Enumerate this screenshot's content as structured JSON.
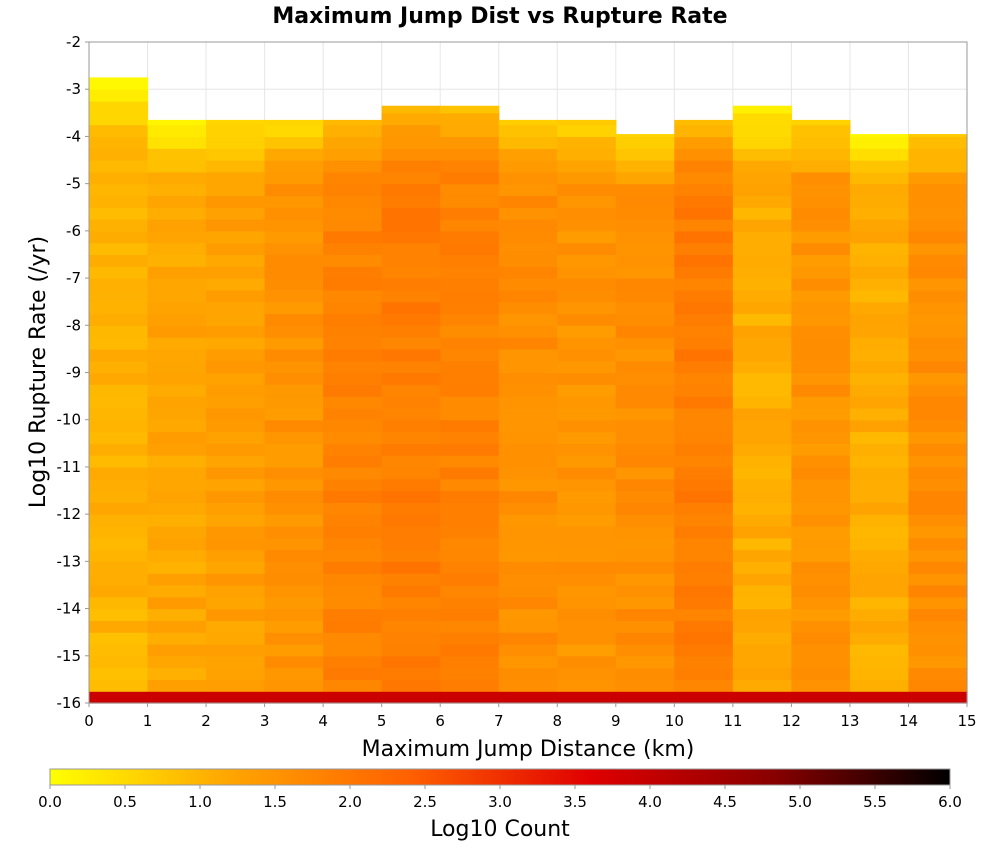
{
  "chart_data": {
    "type": "heatmap",
    "title": "Maximum Jump Dist vs Rupture Rate",
    "xlabel": "Maximum Jump Distance (km)",
    "ylabel": "Log10 Rupture Rate (/yr)",
    "xlim": [
      0,
      15
    ],
    "ylim": [
      -16,
      -2
    ],
    "x_ticks": [
      "0",
      "1",
      "2",
      "3",
      "4",
      "5",
      "6",
      "7",
      "8",
      "9",
      "10",
      "11",
      "12",
      "13",
      "14",
      "15"
    ],
    "y_ticks": [
      "-2",
      "-3",
      "-4",
      "-5",
      "-6",
      "-7",
      "-8",
      "-9",
      "-10",
      "-11",
      "-12",
      "-13",
      "-14",
      "-15",
      "-16"
    ],
    "x_bin_width": 1,
    "y_bin_width": 0.25,
    "column_tops": [
      -2.75,
      -3.65,
      -3.65,
      -3.65,
      -3.65,
      -3.35,
      -3.35,
      -3.65,
      -3.65,
      -3.95,
      -3.65,
      -3.35,
      -3.65,
      -3.95,
      -3.95
    ],
    "column_levels": [
      1.0,
      1.2,
      1.3,
      1.5,
      1.8,
      1.9,
      1.8,
      1.6,
      1.5,
      1.6,
      1.9,
      1.1,
      1.5,
      1.1,
      1.6
    ],
    "bottom_row_value": 3.9,
    "colorbar": {
      "label": "Log10 Count",
      "min": 0.0,
      "max": 6.0,
      "ticks": [
        "0.0",
        "0.5",
        "1.0",
        "1.5",
        "2.0",
        "2.5",
        "3.0",
        "3.5",
        "4.0",
        "4.5",
        "5.0",
        "5.5",
        "6.0"
      ],
      "colors": [
        "#ffff00",
        "#ffa500",
        "#ff6000",
        "#e00000",
        "#8b0000",
        "#000000"
      ]
    },
    "grid": true
  }
}
